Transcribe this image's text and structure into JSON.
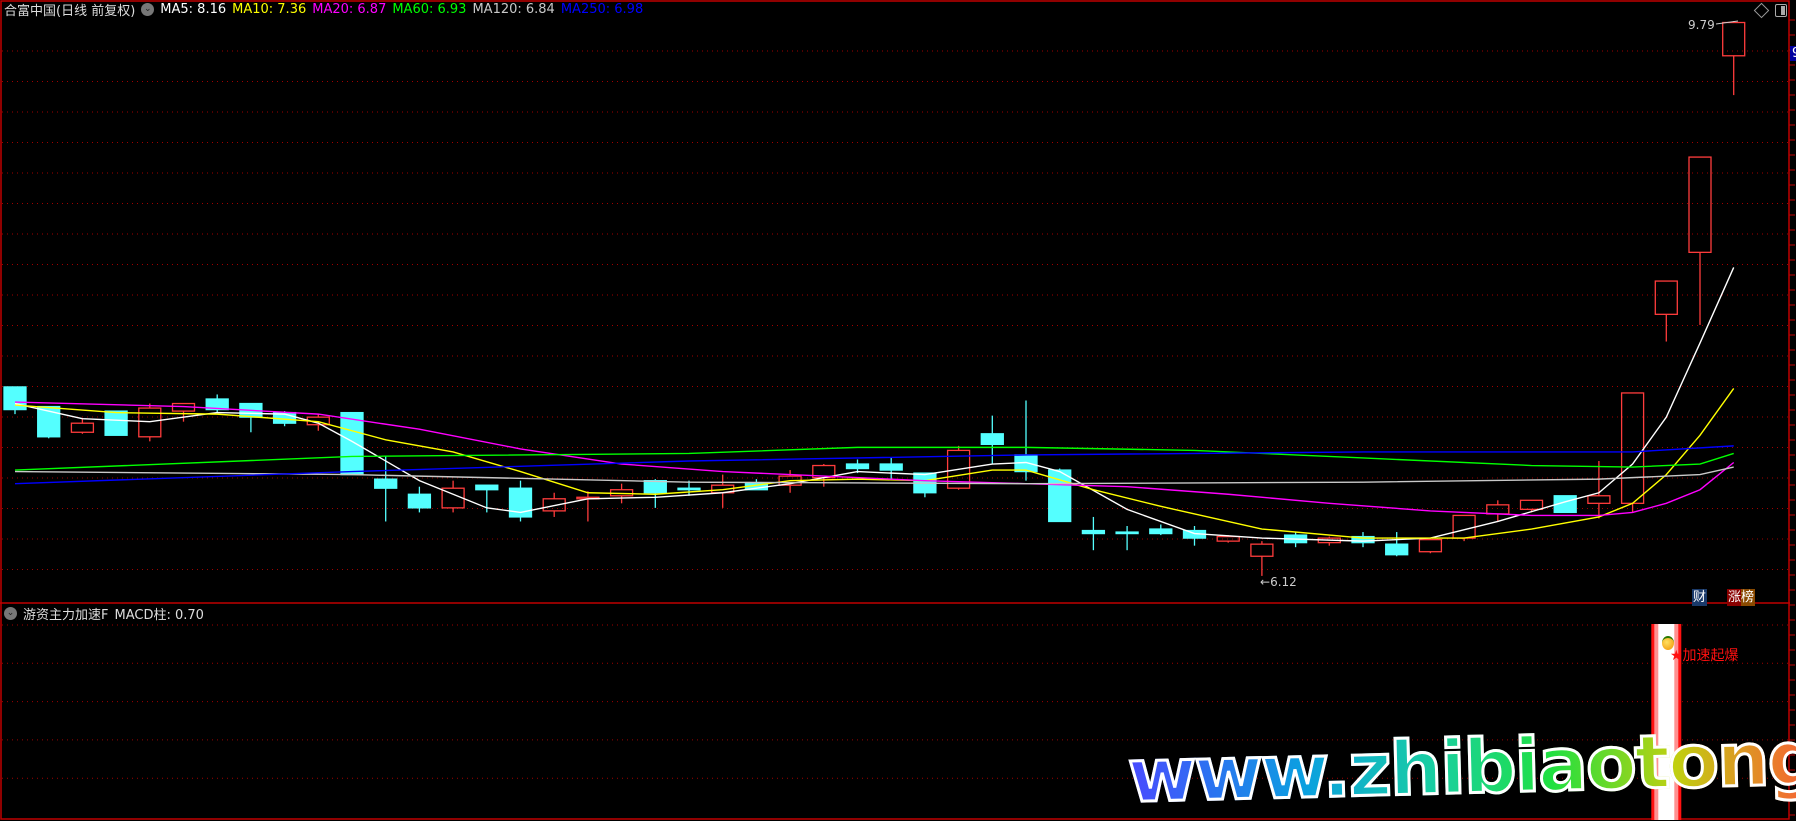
{
  "header": {
    "title": "合富中国(日线 前复权)",
    "ma": [
      {
        "label": "MA5: 8.16",
        "color": "#ffffff"
      },
      {
        "label": "MA10: 7.36",
        "color": "#ffff00"
      },
      {
        "label": "MA20: 6.87",
        "color": "#ff00ff"
      },
      {
        "label": "MA60: 6.93",
        "color": "#00ff00"
      },
      {
        "label": "MA120: 6.84",
        "color": "#c8c8c8"
      },
      {
        "label": "MA250: 6.98",
        "color": "#0000ff"
      }
    ]
  },
  "price_axis_label": "9",
  "annotations": {
    "high": "9.79",
    "low": "6.12"
  },
  "badges": {
    "cai": "财",
    "zhangbang": "涨榜"
  },
  "indicator": {
    "title": "游资主力加速F",
    "value": "MACD柱: 0.70",
    "signal_label": "★加速起爆",
    "signal_bar_index": 49
  },
  "watermark": "www.zhibiaotong.com",
  "colors": {
    "up": "#ff3c3c",
    "down": "#54ffff",
    "grid": "#a00000",
    "axis": "#c00000"
  },
  "chart_data": {
    "type": "candlestick",
    "ohlc": [
      [
        7.37,
        7.37,
        7.19,
        7.22
      ],
      [
        7.24,
        7.24,
        7.03,
        7.04
      ],
      [
        7.07,
        7.16,
        7.06,
        7.13
      ],
      [
        7.21,
        7.21,
        7.05,
        7.05
      ],
      [
        7.04,
        7.26,
        7.01,
        7.23
      ],
      [
        7.21,
        7.26,
        7.14,
        7.26
      ],
      [
        7.29,
        7.32,
        7.2,
        7.22
      ],
      [
        7.26,
        7.26,
        7.07,
        7.17
      ],
      [
        7.2,
        7.21,
        7.11,
        7.13
      ],
      [
        7.12,
        7.19,
        7.08,
        7.17
      ],
      [
        7.2,
        7.2,
        6.79,
        6.79
      ],
      [
        6.76,
        6.91,
        6.48,
        6.7
      ],
      [
        6.66,
        6.71,
        6.54,
        6.57
      ],
      [
        6.57,
        6.75,
        6.54,
        6.7
      ],
      [
        6.72,
        6.72,
        6.54,
        6.69
      ],
      [
        6.7,
        6.75,
        6.48,
        6.51
      ],
      [
        6.55,
        6.67,
        6.51,
        6.63
      ],
      [
        6.64,
        6.68,
        6.48,
        6.64
      ],
      [
        6.65,
        6.73,
        6.6,
        6.69
      ],
      [
        6.75,
        6.76,
        6.57,
        6.67
      ],
      [
        6.7,
        6.75,
        6.65,
        6.69
      ],
      [
        6.67,
        6.79,
        6.57,
        6.72
      ],
      [
        6.73,
        6.76,
        6.69,
        6.69
      ],
      [
        6.72,
        6.82,
        6.67,
        6.78
      ],
      [
        6.77,
        6.86,
        6.71,
        6.85
      ],
      [
        6.86,
        6.89,
        6.8,
        6.83
      ],
      [
        6.86,
        6.9,
        6.76,
        6.82
      ],
      [
        6.8,
        6.8,
        6.64,
        6.67
      ],
      [
        6.7,
        6.98,
        6.69,
        6.95
      ],
      [
        7.06,
        7.18,
        6.86,
        6.99
      ],
      [
        6.92,
        7.28,
        6.75,
        6.81
      ],
      [
        6.82,
        6.83,
        6.48,
        6.48
      ],
      [
        6.42,
        6.51,
        6.29,
        6.4
      ],
      [
        6.41,
        6.45,
        6.29,
        6.4
      ],
      [
        6.43,
        6.46,
        6.39,
        6.4
      ],
      [
        6.42,
        6.45,
        6.32,
        6.37
      ],
      [
        6.35,
        6.39,
        6.34,
        6.38
      ],
      [
        6.25,
        6.35,
        6.12,
        6.33
      ],
      [
        6.39,
        6.41,
        6.31,
        6.34
      ],
      [
        6.34,
        6.38,
        6.32,
        6.37
      ],
      [
        6.38,
        6.41,
        6.31,
        6.34
      ],
      [
        6.33,
        6.41,
        6.25,
        6.26
      ],
      [
        6.28,
        6.36,
        6.27,
        6.36
      ],
      [
        6.37,
        6.52,
        6.35,
        6.52
      ],
      [
        6.53,
        6.62,
        6.48,
        6.59
      ],
      [
        6.56,
        6.62,
        6.54,
        6.62
      ],
      [
        6.65,
        6.65,
        6.54,
        6.54
      ],
      [
        6.6,
        6.88,
        6.5,
        6.65
      ],
      [
        6.6,
        7.33,
        6.54,
        7.33
      ],
      [
        7.85,
        8.07,
        7.67,
        8.07
      ],
      [
        8.26,
        8.89,
        7.78,
        8.89
      ],
      [
        9.56,
        9.79,
        9.3,
        9.78
      ]
    ],
    "ma_series": [
      {
        "name": "MA5",
        "color": "#ffffff",
        "points": [
          [
            0,
            7.26
          ],
          [
            2,
            7.16
          ],
          [
            4,
            7.14
          ],
          [
            6,
            7.2
          ],
          [
            8,
            7.19
          ],
          [
            9,
            7.13
          ],
          [
            10,
            7.01
          ],
          [
            12,
            6.75
          ],
          [
            14,
            6.57
          ],
          [
            15,
            6.54
          ],
          [
            17,
            6.63
          ],
          [
            19,
            6.64
          ],
          [
            21,
            6.67
          ],
          [
            23,
            6.73
          ],
          [
            25,
            6.81
          ],
          [
            27,
            6.79
          ],
          [
            29,
            6.86
          ],
          [
            30,
            6.87
          ],
          [
            31,
            6.81
          ],
          [
            33,
            6.56
          ],
          [
            35,
            6.4
          ],
          [
            37,
            6.37
          ],
          [
            40,
            6.35
          ],
          [
            42,
            6.37
          ],
          [
            44,
            6.48
          ],
          [
            46,
            6.61
          ],
          [
            47,
            6.67
          ],
          [
            48,
            6.86
          ],
          [
            49,
            7.17
          ],
          [
            50,
            7.66
          ],
          [
            51,
            8.16
          ]
        ]
      },
      {
        "name": "MA10",
        "color": "#ffff00",
        "points": [
          [
            0,
            7.25
          ],
          [
            3,
            7.2
          ],
          [
            6,
            7.19
          ],
          [
            9,
            7.14
          ],
          [
            11,
            7.02
          ],
          [
            13,
            6.94
          ],
          [
            15,
            6.81
          ],
          [
            17,
            6.67
          ],
          [
            19,
            6.66
          ],
          [
            21,
            6.69
          ],
          [
            23,
            6.75
          ],
          [
            25,
            6.76
          ],
          [
            27,
            6.75
          ],
          [
            29,
            6.82
          ],
          [
            30,
            6.82
          ],
          [
            32,
            6.69
          ],
          [
            34,
            6.58
          ],
          [
            37,
            6.43
          ],
          [
            40,
            6.37
          ],
          [
            43,
            6.37
          ],
          [
            45,
            6.43
          ],
          [
            47,
            6.51
          ],
          [
            48,
            6.6
          ],
          [
            49,
            6.79
          ],
          [
            50,
            7.05
          ],
          [
            51,
            7.36
          ]
        ]
      },
      {
        "name": "MA20",
        "color": "#ff00ff",
        "points": [
          [
            0,
            7.27
          ],
          [
            5,
            7.24
          ],
          [
            9,
            7.19
          ],
          [
            12,
            7.09
          ],
          [
            15,
            6.96
          ],
          [
            18,
            6.86
          ],
          [
            21,
            6.81
          ],
          [
            24,
            6.78
          ],
          [
            27,
            6.75
          ],
          [
            30,
            6.73
          ],
          [
            33,
            6.71
          ],
          [
            36,
            6.66
          ],
          [
            39,
            6.6
          ],
          [
            42,
            6.55
          ],
          [
            45,
            6.52
          ],
          [
            47,
            6.52
          ],
          [
            48,
            6.54
          ],
          [
            49,
            6.6
          ],
          [
            50,
            6.69
          ],
          [
            51,
            6.87
          ]
        ]
      },
      {
        "name": "MA60",
        "color": "#00ff00",
        "points": [
          [
            0,
            6.82
          ],
          [
            10,
            6.91
          ],
          [
            20,
            6.93
          ],
          [
            25,
            6.97
          ],
          [
            30,
            6.97
          ],
          [
            35,
            6.95
          ],
          [
            40,
            6.9
          ],
          [
            45,
            6.85
          ],
          [
            48,
            6.84
          ],
          [
            50,
            6.86
          ],
          [
            51,
            6.93
          ]
        ]
      },
      {
        "name": "MA120",
        "color": "#c8c8c8",
        "points": [
          [
            0,
            6.81
          ],
          [
            10,
            6.79
          ],
          [
            20,
            6.74
          ],
          [
            30,
            6.73
          ],
          [
            40,
            6.74
          ],
          [
            47,
            6.76
          ],
          [
            50,
            6.79
          ],
          [
            51,
            6.84
          ]
        ]
      },
      {
        "name": "MA250",
        "color": "#0000ff",
        "points": [
          [
            0,
            6.73
          ],
          [
            10,
            6.81
          ],
          [
            20,
            6.88
          ],
          [
            30,
            6.92
          ],
          [
            40,
            6.94
          ],
          [
            48,
            6.94
          ],
          [
            51,
            6.98
          ]
        ]
      }
    ]
  }
}
